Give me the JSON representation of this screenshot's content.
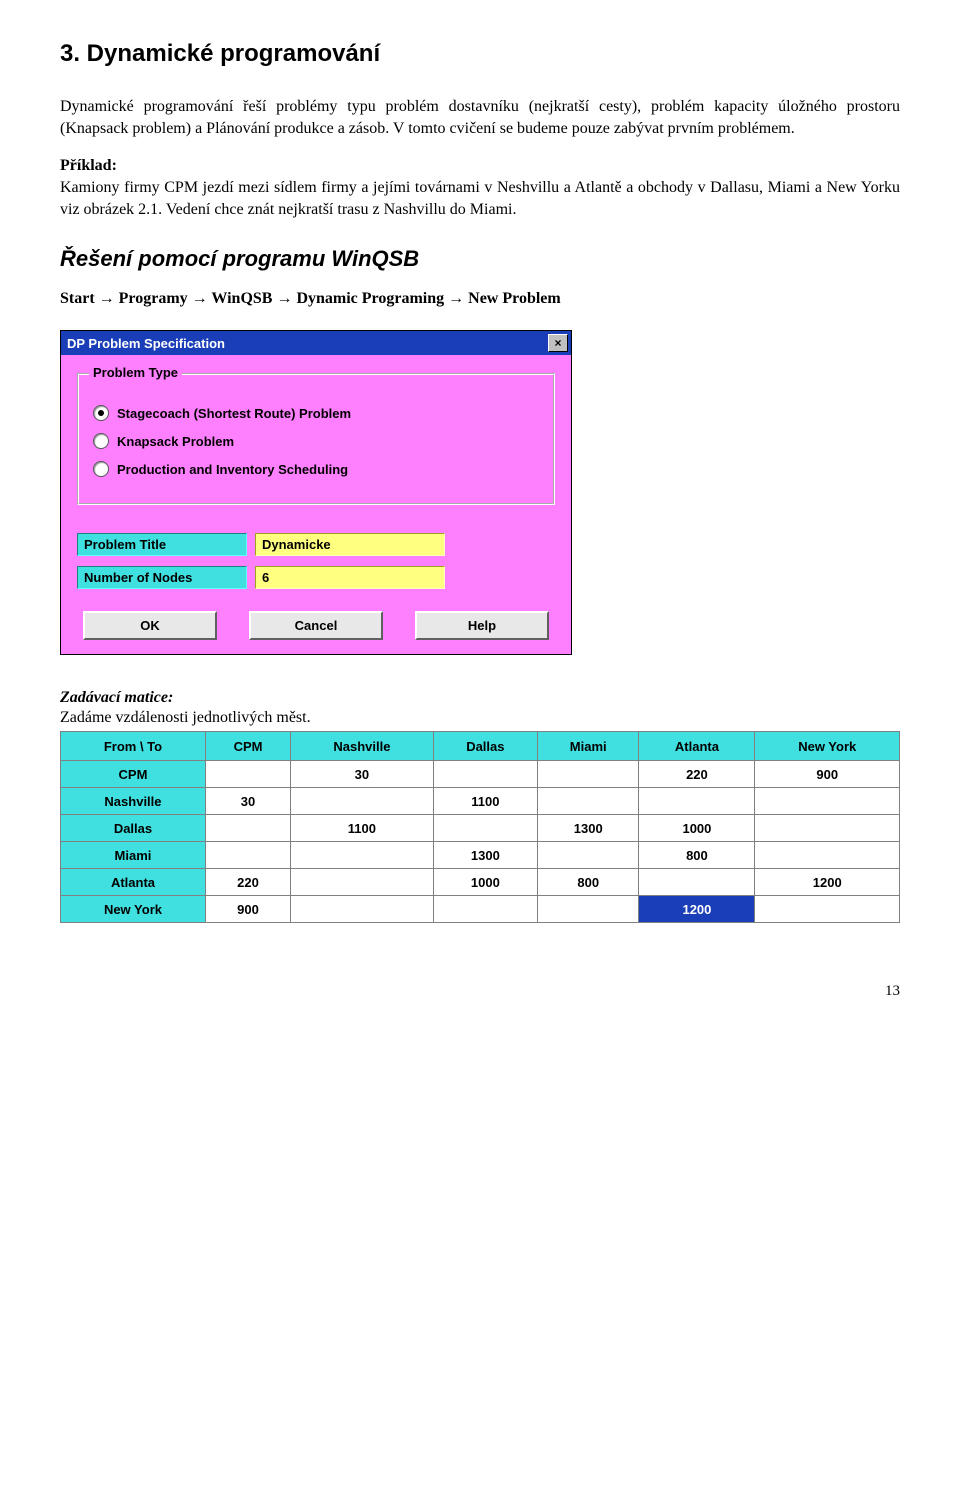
{
  "section": {
    "title": "3. Dynamické programování",
    "intro": "Dynamické programování řeší problémy typu problém dostavníku (nejkratší cesty), problém kapacity úložného prostoru (Knapsack problem) a Plánování produkce a zásob. V tomto cvičení se budeme pouze zabývat prvním problémem.",
    "priklad_label": "Příklad:",
    "priklad_text": "Kamiony firmy CPM jezdí mezi sídlem firmy a jejími továrnami v Neshvillu a Atlantě a obchody v Dallasu, Miami a New Yorku viz obrázek 2.1. Vedení chce znát nejkratší trasu z Nashvillu do Miami.",
    "subheading": "Řešení pomocí programu WinQSB",
    "breadcrumb": "Start → Programy → WinQSB → Dynamic Programing → New Problem"
  },
  "dialog": {
    "colors": {
      "titlebar_bg": "#1a3db8",
      "body_bg": "#ff80ff",
      "groupbox_label_bg": "#ff80ff",
      "field_label_bg": "#40e0e0",
      "field_label_border": "#208080 #60ffff #60ffff #208080",
      "field_input_bg": "#ffff80",
      "field_input_border": "#a0a020 #ffffc0 #ffffc0 #a0a020",
      "button_bg": "#e8e8e8",
      "button_border": "#ffffff #606060 #606060 #ffffff"
    },
    "title": "DP Problem Specification",
    "groupbox_title": "Problem Type",
    "options": [
      {
        "label": "Stagecoach (Shortest Route) Problem",
        "checked": true
      },
      {
        "label": "Knapsack Problem",
        "checked": false
      },
      {
        "label": "Production and Inventory Scheduling",
        "checked": false
      }
    ],
    "fields": [
      {
        "label": "Problem Title",
        "value": "Dynamicke"
      },
      {
        "label": "Number of Nodes",
        "value": "6"
      }
    ],
    "buttons": {
      "ok": "OK",
      "cancel": "Cancel",
      "help": "Help"
    }
  },
  "matrix": {
    "heading": "Zadávací matice:",
    "sub": "Zadáme vzdálenosti jednotlivých měst.",
    "header_bg": "#40e0e0",
    "rowhead_bg": "#40e0e0",
    "selected_bg": "#1a3db8",
    "selected_fg": "#ffffff",
    "corner": "From \\ To",
    "columns": [
      "CPM",
      "Nashville",
      "Dallas",
      "Miami",
      "Atlanta",
      "New York"
    ],
    "rows": [
      {
        "name": "CPM",
        "cells": [
          "",
          "30",
          "",
          "",
          "220",
          "900"
        ]
      },
      {
        "name": "Nashville",
        "cells": [
          "30",
          "",
          "1100",
          "",
          "",
          ""
        ]
      },
      {
        "name": "Dallas",
        "cells": [
          "",
          "1100",
          "",
          "1300",
          "1000",
          ""
        ]
      },
      {
        "name": "Miami",
        "cells": [
          "",
          "",
          "1300",
          "",
          "800",
          ""
        ]
      },
      {
        "name": "Atlanta",
        "cells": [
          "220",
          "",
          "1000",
          "800",
          "",
          "1200"
        ]
      },
      {
        "name": "New York",
        "cells": [
          "900",
          "",
          "",
          "",
          "1200",
          ""
        ]
      }
    ],
    "selected": {
      "row": 5,
      "col": 4
    }
  },
  "page_number": "13"
}
